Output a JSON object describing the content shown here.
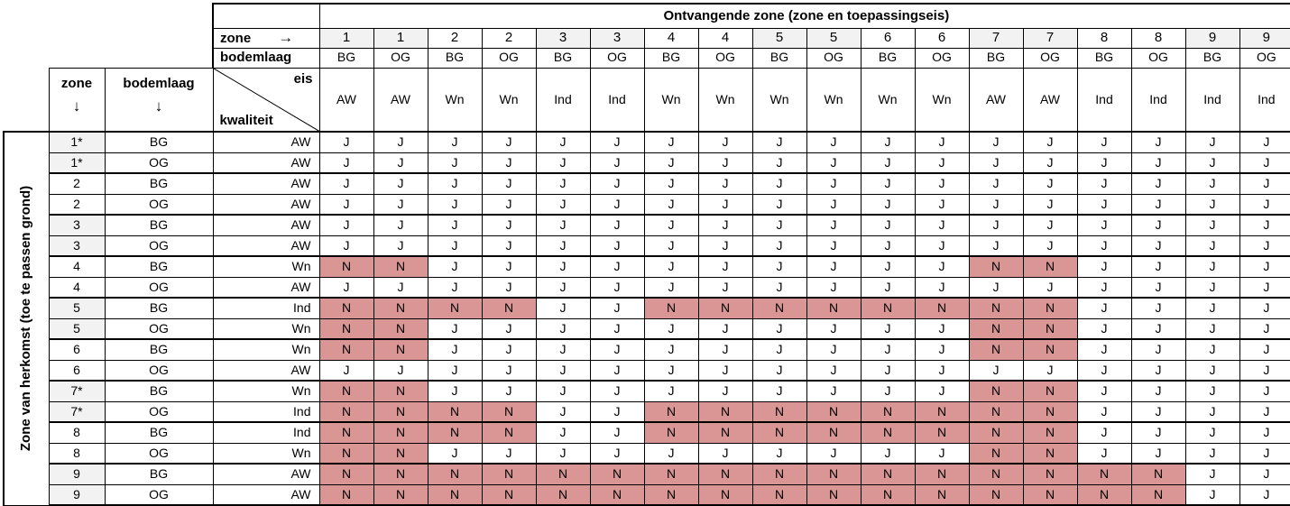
{
  "title": "Ontvangende zone (zone en toepassingseis)",
  "row_axis_label": "Zone van herkomst (toe te passen grond)",
  "corner": {
    "zone_arrow_label": "zone",
    "right_arrow": "→",
    "bodemlaag_label": "bodemlaag",
    "eis_label": "eis",
    "kwaliteit_label": "kwaliteit",
    "row_zone_label": "zone",
    "row_bodemlaag_label": "bodemlaag",
    "down_arrow": "↓"
  },
  "colors": {
    "highlight": "#d99694",
    "zone_shade": "#f2f2f2"
  },
  "columns": [
    {
      "zone": "1",
      "bodemlaag": "BG",
      "eis": "AW"
    },
    {
      "zone": "1",
      "bodemlaag": "OG",
      "eis": "AW"
    },
    {
      "zone": "2",
      "bodemlaag": "BG",
      "eis": "Wn"
    },
    {
      "zone": "2",
      "bodemlaag": "OG",
      "eis": "Wn"
    },
    {
      "zone": "3",
      "bodemlaag": "BG",
      "eis": "Ind"
    },
    {
      "zone": "3",
      "bodemlaag": "OG",
      "eis": "Ind"
    },
    {
      "zone": "4",
      "bodemlaag": "BG",
      "eis": "Wn"
    },
    {
      "zone": "4",
      "bodemlaag": "OG",
      "eis": "Wn"
    },
    {
      "zone": "5",
      "bodemlaag": "BG",
      "eis": "Wn"
    },
    {
      "zone": "5",
      "bodemlaag": "OG",
      "eis": "Wn"
    },
    {
      "zone": "6",
      "bodemlaag": "BG",
      "eis": "Wn"
    },
    {
      "zone": "6",
      "bodemlaag": "OG",
      "eis": "Wn"
    },
    {
      "zone": "7",
      "bodemlaag": "BG",
      "eis": "AW"
    },
    {
      "zone": "7",
      "bodemlaag": "OG",
      "eis": "AW"
    },
    {
      "zone": "8",
      "bodemlaag": "BG",
      "eis": "Ind"
    },
    {
      "zone": "8",
      "bodemlaag": "OG",
      "eis": "Ind"
    },
    {
      "zone": "9",
      "bodemlaag": "BG",
      "eis": "Ind"
    },
    {
      "zone": "9",
      "bodemlaag": "OG",
      "eis": "Ind"
    }
  ],
  "rows": [
    {
      "zone": "1*",
      "bodemlaag": "BG",
      "kwaliteit": "AW",
      "values": [
        "J",
        "J",
        "J",
        "J",
        "J",
        "J",
        "J",
        "J",
        "J",
        "J",
        "J",
        "J",
        "J",
        "J",
        "J",
        "J",
        "J",
        "J"
      ]
    },
    {
      "zone": "1*",
      "bodemlaag": "OG",
      "kwaliteit": "AW",
      "values": [
        "J",
        "J",
        "J",
        "J",
        "J",
        "J",
        "J",
        "J",
        "J",
        "J",
        "J",
        "J",
        "J",
        "J",
        "J",
        "J",
        "J",
        "J"
      ]
    },
    {
      "zone": "2",
      "bodemlaag": "BG",
      "kwaliteit": "AW",
      "values": [
        "J",
        "J",
        "J",
        "J",
        "J",
        "J",
        "J",
        "J",
        "J",
        "J",
        "J",
        "J",
        "J",
        "J",
        "J",
        "J",
        "J",
        "J"
      ]
    },
    {
      "zone": "2",
      "bodemlaag": "OG",
      "kwaliteit": "AW",
      "values": [
        "J",
        "J",
        "J",
        "J",
        "J",
        "J",
        "J",
        "J",
        "J",
        "J",
        "J",
        "J",
        "J",
        "J",
        "J",
        "J",
        "J",
        "J"
      ]
    },
    {
      "zone": "3",
      "bodemlaag": "BG",
      "kwaliteit": "AW",
      "values": [
        "J",
        "J",
        "J",
        "J",
        "J",
        "J",
        "J",
        "J",
        "J",
        "J",
        "J",
        "J",
        "J",
        "J",
        "J",
        "J",
        "J",
        "J"
      ]
    },
    {
      "zone": "3",
      "bodemlaag": "OG",
      "kwaliteit": "AW",
      "values": [
        "J",
        "J",
        "J",
        "J",
        "J",
        "J",
        "J",
        "J",
        "J",
        "J",
        "J",
        "J",
        "J",
        "J",
        "J",
        "J",
        "J",
        "J"
      ]
    },
    {
      "zone": "4",
      "bodemlaag": "BG",
      "kwaliteit": "Wn",
      "values": [
        "N",
        "N",
        "J",
        "J",
        "J",
        "J",
        "J",
        "J",
        "J",
        "J",
        "J",
        "J",
        "N",
        "N",
        "J",
        "J",
        "J",
        "J"
      ]
    },
    {
      "zone": "4",
      "bodemlaag": "OG",
      "kwaliteit": "AW",
      "values": [
        "J",
        "J",
        "J",
        "J",
        "J",
        "J",
        "J",
        "J",
        "J",
        "J",
        "J",
        "J",
        "J",
        "J",
        "J",
        "J",
        "J",
        "J"
      ]
    },
    {
      "zone": "5",
      "bodemlaag": "BG",
      "kwaliteit": "Ind",
      "values": [
        "N",
        "N",
        "N",
        "N",
        "J",
        "J",
        "N",
        "N",
        "N",
        "N",
        "N",
        "N",
        "N",
        "N",
        "J",
        "J",
        "J",
        "J"
      ]
    },
    {
      "zone": "5",
      "bodemlaag": "OG",
      "kwaliteit": "Wn",
      "values": [
        "N",
        "N",
        "J",
        "J",
        "J",
        "J",
        "J",
        "J",
        "J",
        "J",
        "J",
        "J",
        "N",
        "N",
        "J",
        "J",
        "J",
        "J"
      ]
    },
    {
      "zone": "6",
      "bodemlaag": "BG",
      "kwaliteit": "Wn",
      "values": [
        "N",
        "N",
        "J",
        "J",
        "J",
        "J",
        "J",
        "J",
        "J",
        "J",
        "J",
        "J",
        "N",
        "N",
        "J",
        "J",
        "J",
        "J"
      ]
    },
    {
      "zone": "6",
      "bodemlaag": "OG",
      "kwaliteit": "AW",
      "values": [
        "J",
        "J",
        "J",
        "J",
        "J",
        "J",
        "J",
        "J",
        "J",
        "J",
        "J",
        "J",
        "J",
        "J",
        "J",
        "J",
        "J",
        "J"
      ]
    },
    {
      "zone": "7*",
      "bodemlaag": "BG",
      "kwaliteit": "Wn",
      "values": [
        "N",
        "N",
        "J",
        "J",
        "J",
        "J",
        "J",
        "J",
        "J",
        "J",
        "J",
        "J",
        "N",
        "N",
        "J",
        "J",
        "J",
        "J"
      ]
    },
    {
      "zone": "7*",
      "bodemlaag": "OG",
      "kwaliteit": "Ind",
      "values": [
        "N",
        "N",
        "N",
        "N",
        "J",
        "J",
        "N",
        "N",
        "N",
        "N",
        "N",
        "N",
        "N",
        "N",
        "J",
        "J",
        "J",
        "J"
      ]
    },
    {
      "zone": "8",
      "bodemlaag": "BG",
      "kwaliteit": "Ind",
      "values": [
        "N",
        "N",
        "N",
        "N",
        "J",
        "J",
        "N",
        "N",
        "N",
        "N",
        "N",
        "N",
        "N",
        "N",
        "J",
        "J",
        "J",
        "J"
      ]
    },
    {
      "zone": "8",
      "bodemlaag": "OG",
      "kwaliteit": "Wn",
      "values": [
        "N",
        "N",
        "J",
        "J",
        "J",
        "J",
        "J",
        "J",
        "J",
        "J",
        "J",
        "J",
        "N",
        "N",
        "J",
        "J",
        "J",
        "J"
      ]
    },
    {
      "zone": "9",
      "bodemlaag": "BG",
      "kwaliteit": "AW",
      "values": [
        "N",
        "N",
        "N",
        "N",
        "N",
        "N",
        "N",
        "N",
        "N",
        "N",
        "N",
        "N",
        "N",
        "N",
        "N",
        "N",
        "J",
        "J"
      ]
    },
    {
      "zone": "9",
      "bodemlaag": "OG",
      "kwaliteit": "AW",
      "values": [
        "N",
        "N",
        "N",
        "N",
        "N",
        "N",
        "N",
        "N",
        "N",
        "N",
        "N",
        "N",
        "N",
        "N",
        "N",
        "N",
        "J",
        "J"
      ]
    }
  ]
}
